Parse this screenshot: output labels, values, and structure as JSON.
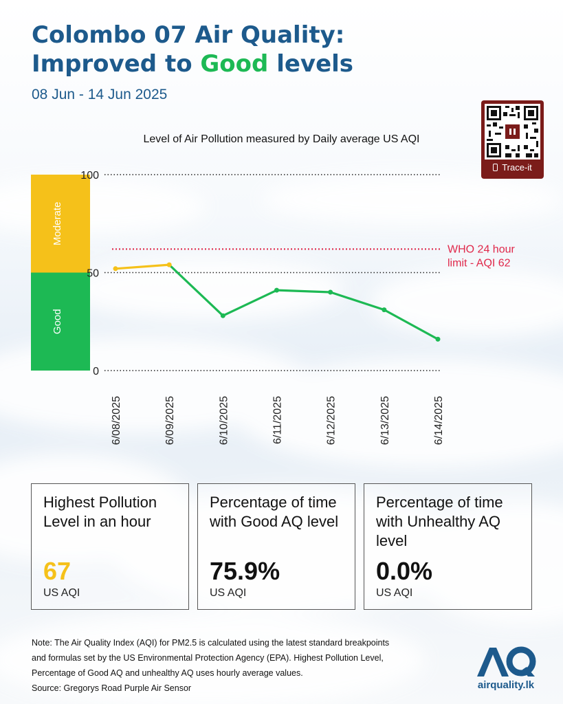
{
  "header": {
    "title_line1": "Colombo 07 Air Quality:",
    "title_line2_pre": "Improved to ",
    "title_line2_good": "Good",
    "title_line2_post": " levels",
    "date_range": "08 Jun - 14 Jun 2025"
  },
  "qr": {
    "label": "Trace-it"
  },
  "chart_data": {
    "type": "line",
    "title": "Level of Air Pollution measured by Daily average US AQI",
    "x": [
      "6/08/2025",
      "6/09/2025",
      "6/10/2025",
      "6/11/2025",
      "6/12/2025",
      "6/13/2025",
      "6/14/2025"
    ],
    "series": [
      {
        "values": [
          52,
          54,
          28,
          41,
          40,
          31,
          16
        ]
      }
    ],
    "ylim": [
      0,
      100
    ],
    "yticks": [
      0,
      50,
      100
    ],
    "grid": "dotted",
    "bands": [
      {
        "label": "Good",
        "from": 0,
        "to": 50,
        "color": "#1db954"
      },
      {
        "label": "Moderate",
        "from": 50,
        "to": 100,
        "color": "#f5c11a"
      }
    ],
    "reference_line": {
      "value": 62,
      "label_line1": "WHO 24 hour",
      "label_line2": "limit - AQI 62",
      "color": "#e0284a"
    },
    "colors": {
      "good": "#1db954",
      "moderate": "#f5c11a"
    }
  },
  "cards": [
    {
      "label_lines": [
        "Highest Pollution",
        "Level in an hour"
      ],
      "value": "67",
      "value_color": "#f5c11a",
      "unit": "US AQI"
    },
    {
      "label_lines": [
        "Percentage of time",
        "with Good AQ level"
      ],
      "value": "75.9%",
      "value_color": "#111111",
      "unit": "US AQI"
    },
    {
      "label_lines": [
        "Percentage of time",
        "with Unhealthy AQ",
        "level"
      ],
      "value": "0.0%",
      "value_color": "#111111",
      "unit": "US AQI"
    }
  ],
  "footer": {
    "note_lines": [
      "Note: The Air Quality Index (AQI) for PM2.5 is calculated using the latest standard breakpoints",
      "and formulas set by the US Environmental Protection Agency (EPA). Highest Pollution Level,",
      "Percentage of Good AQ and unhealthy AQ uses hourly average values.",
      "Source: Gregorys Road Purple Air Sensor"
    ],
    "logo_mark": "AQ",
    "logo_text": "airquality.lk"
  }
}
